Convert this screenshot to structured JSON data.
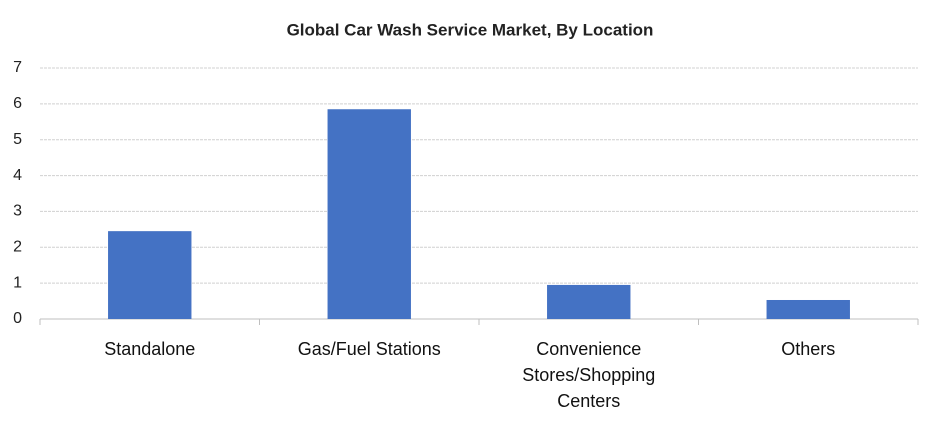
{
  "chart_data": {
    "type": "bar",
    "title": "Global Car Wash Service Market, By Location",
    "categories": [
      "Standalone",
      "Gas/Fuel Stations",
      "Convenience Stores/Shopping Centers",
      "Others"
    ],
    "values": [
      2.45,
      5.85,
      0.95,
      0.53
    ],
    "color": "#4472c4",
    "ylim": [
      0,
      7
    ],
    "yticks": [
      0,
      1,
      2,
      3,
      4,
      5,
      6,
      7
    ],
    "grid": true
  }
}
